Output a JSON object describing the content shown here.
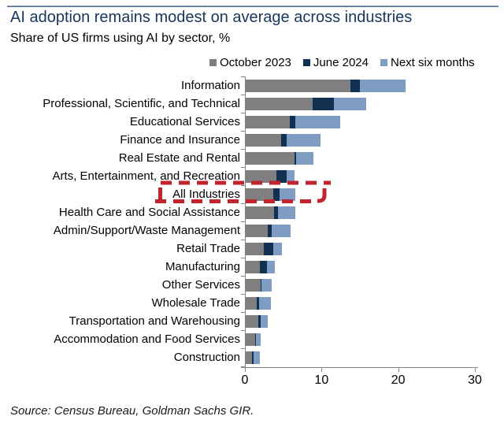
{
  "header": {
    "title": "AI adoption remains modest on average across industries",
    "subtitle": "Share of US firms using AI by sector, %"
  },
  "legend": [
    {
      "label": "October 2023",
      "color": "#7f7f7f"
    },
    {
      "label": "June 2024",
      "color": "#12304f"
    },
    {
      "label": "Next six months",
      "color": "#7f9dc3"
    }
  ],
  "chart_data": {
    "type": "bar",
    "orientation": "horizontal",
    "stacked": true,
    "title": "AI adoption remains modest on average across industries",
    "subtitle": "Share of US firms using AI by sector, %",
    "xlabel": "",
    "ylabel": "",
    "xlim": [
      0,
      30
    ],
    "x_ticks": [
      "0",
      "10",
      "20",
      "30"
    ],
    "grid": false,
    "legend_position": "top-right",
    "categories": [
      "Information",
      "Professional, Scientific, and Technical",
      "Educational Services",
      "Finance and Insurance",
      "Real Estate and Rental",
      "Arts, Entertainment, and Recreation",
      "All Industries",
      "Health Care and Social Assistance",
      "Admin/Support/Waste Management",
      "Retail Trade",
      "Manufacturing",
      "Other Services",
      "Wholesale Trade",
      "Transportation and Warehousing",
      "Accommodation and Food Services",
      "Construction"
    ],
    "series": [
      {
        "name": "October 2023",
        "color": "#7f7f7f",
        "values": [
          13.8,
          8.8,
          5.9,
          4.7,
          6.5,
          4.1,
          3.7,
          3.8,
          3.0,
          2.5,
          1.9,
          2.0,
          1.5,
          1.7,
          1.3,
          0.9
        ]
      },
      {
        "name": "June 2024",
        "color": "#12304f",
        "values": [
          1.2,
          2.8,
          0.7,
          0.8,
          0.2,
          1.3,
          0.8,
          0.5,
          0.5,
          1.2,
          1.0,
          0.2,
          0.4,
          0.35,
          0.1,
          0.25
        ]
      },
      {
        "name": "Next six months",
        "color": "#7f9dc3",
        "values": [
          6.0,
          4.2,
          5.8,
          4.4,
          2.2,
          1.1,
          2.1,
          2.3,
          2.5,
          1.1,
          1.0,
          1.3,
          1.5,
          0.9,
          0.65,
          0.8
        ]
      }
    ],
    "annotation": {
      "highlighted_category": "All Industries",
      "style": "hand-drawn red dashed box",
      "color": "#c2242e"
    }
  },
  "colors": {
    "title": "#17375e",
    "axis": "#878787",
    "annotation_red": "#c2242e"
  },
  "footer": {
    "source": "Source: Census Bureau, Goldman Sachs GIR."
  }
}
